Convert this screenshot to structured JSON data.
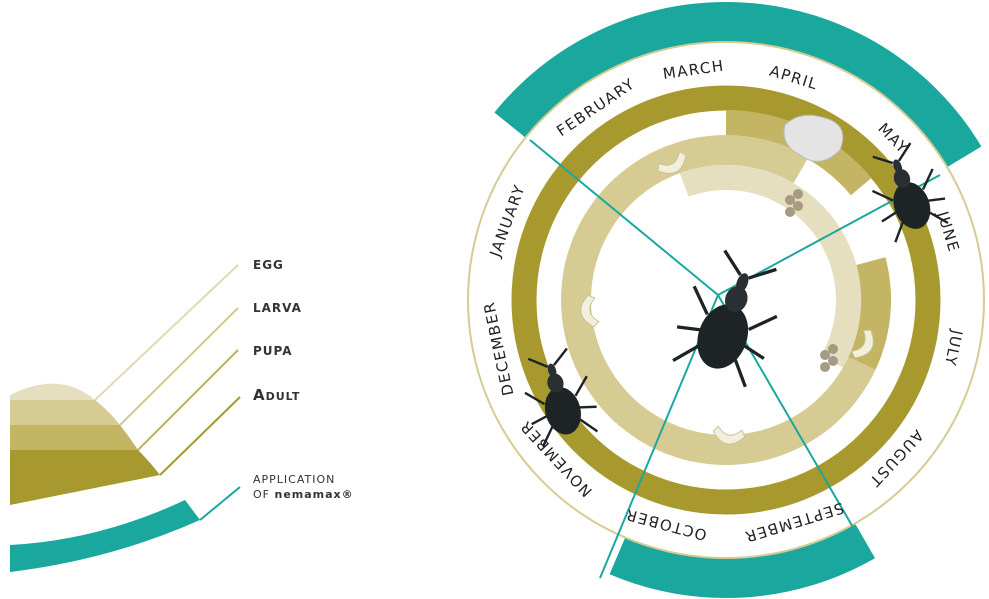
{
  "legend": {
    "egg": "EGG",
    "larva": "LARVA",
    "pupa": "PUPA",
    "adult": "Adult",
    "application": "APPLICATION",
    "application_of": "OF",
    "brand": "nemamax®"
  },
  "months": [
    "JANUARY",
    "FEBRUARY",
    "MARCH",
    "APRIL",
    "MAY",
    "JUNE",
    "JULY",
    "AUGUST",
    "SEPTEMBER",
    "OCTOBER",
    "NOVEMBER",
    "DECEMBER"
  ]
}
